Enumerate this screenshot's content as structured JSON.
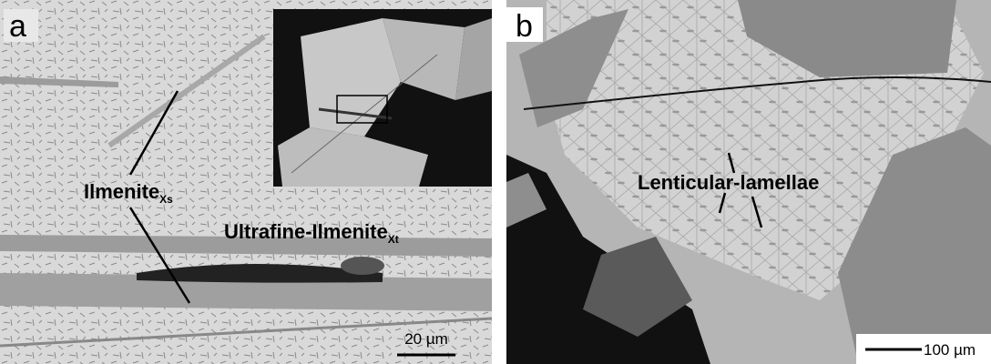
{
  "panels": [
    {
      "label": "a",
      "annotations": [
        {
          "text": "Ilmenite",
          "subscript": "Xs"
        },
        {
          "text": "Ultrafine-Ilmenite",
          "subscript": "Xt"
        }
      ],
      "scale_bar": "20 µm"
    },
    {
      "label": "b",
      "annotations": [
        {
          "text": "Lenticular-lamellae"
        }
      ],
      "scale_bar": "100 µm"
    }
  ]
}
